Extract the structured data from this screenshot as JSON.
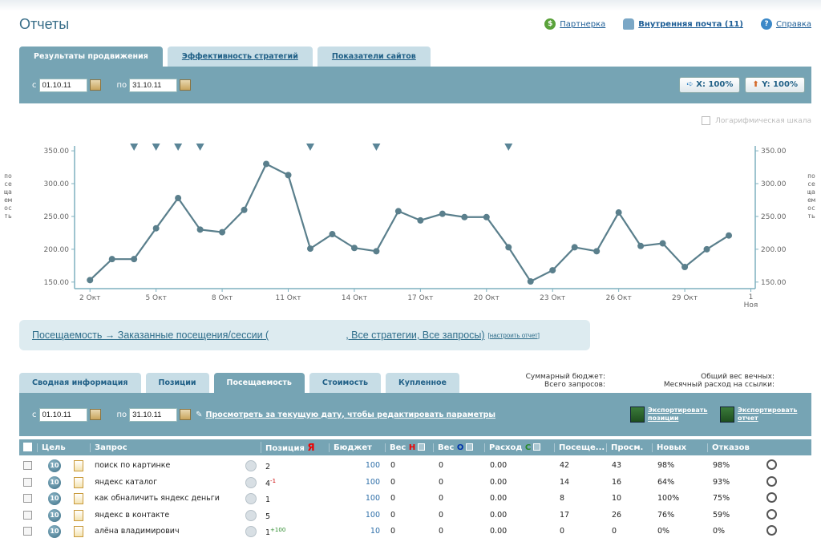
{
  "header": {
    "title": "Отчеты",
    "partner_link": "Партнерка",
    "mail_link": "Внутренняя почта (11)",
    "help_link": "Справка"
  },
  "top_tabs": [
    "Результаты продвижения",
    "Эффективность стратегий",
    "Показатели сайтов"
  ],
  "date_filter": {
    "from_label": "с",
    "from": "01.10.11",
    "to_label": "по",
    "to": "31.10.11"
  },
  "zoom": {
    "x": "X: 100%",
    "y": "Y: 100%"
  },
  "log_scale_label": "Логарифмическая шкала",
  "chart_data": {
    "type": "line",
    "ylabel": "посещаемость",
    "ylim": [
      140,
      355
    ],
    "y_ticks": [
      "350.00",
      "300.00",
      "250.00",
      "200.00",
      "150.00"
    ],
    "x_ticks": [
      "2 Окт",
      "5 Окт",
      "8 Окт",
      "11 Окт",
      "14 Окт",
      "17 Окт",
      "20 Окт",
      "23 Окт",
      "26 Окт",
      "29 Окт",
      "1 Ноя"
    ],
    "x": [
      2,
      3,
      4,
      5,
      6,
      7,
      8,
      9,
      10,
      11,
      12,
      13,
      14,
      15,
      16,
      17,
      18,
      19,
      20,
      21,
      22,
      23,
      24,
      25,
      26,
      27,
      28,
      29,
      30,
      31
    ],
    "values": [
      153,
      185,
      185,
      232,
      278,
      230,
      226,
      260,
      330,
      313,
      201,
      223,
      202,
      197,
      258,
      244,
      254,
      249,
      249,
      203,
      151,
      168,
      203,
      197,
      256,
      205,
      209,
      173,
      200,
      221
    ],
    "markers_x": [
      4,
      5,
      6,
      7,
      12,
      15,
      21
    ],
    "line_color": "#5a7f8c",
    "axis_color": "#7fb0bf"
  },
  "report": {
    "title": "Посещаемость → Заказанные посещения/сессии (",
    "title_rest": ", Все стратегии, Все запросы)",
    "configure_link": "[настроить отчет]"
  },
  "bottom_tabs": [
    "Сводная информация",
    "Позиции",
    "Посещаемость",
    "Стоимость",
    "Купленное"
  ],
  "summary": {
    "budget": "Суммарный бюджет:",
    "requests": "Всего запросов:",
    "total_weight": "Общий вес вечных:",
    "monthly_spend": "Месячный расход на ссылки:"
  },
  "date_filter2": {
    "from_label": "с",
    "from": "01.10.11",
    "to_label": "по",
    "to": "31.10.11"
  },
  "view_link": "Просмотреть за текущую дату, чтобы редактировать параметры",
  "export": {
    "positions": "Экспортировать позиции",
    "report": "Экспортировать отчет"
  },
  "columns": [
    "Цель",
    "Запрос",
    "Позиция",
    "Я",
    "Бюджет",
    "Вес",
    "H",
    "Вес",
    "O",
    "Расход",
    "C",
    "Посеще...",
    "Просм.",
    "Новых",
    "Отказов"
  ],
  "rows": [
    {
      "goal": "10",
      "query": "поиск по картинке",
      "pos": "2",
      "pos_sup": "",
      "budget": "100",
      "b2": "0",
      "weight_o": "0",
      "spend": "0.00",
      "visits": "42",
      "views": "43",
      "new": "98%",
      "bounce": "98%"
    },
    {
      "goal": "10",
      "query": "яндекс каталог",
      "pos": "4",
      "pos_sup": "-1",
      "budget": "100",
      "b2": "0",
      "weight_o": "0",
      "spend": "0.00",
      "visits": "14",
      "views": "16",
      "new": "64%",
      "bounce": "93%"
    },
    {
      "goal": "10",
      "query": "как обналичить яндекс деньги",
      "pos": "1",
      "pos_sup": "",
      "budget": "100",
      "b2": "0",
      "weight_o": "0",
      "spend": "0.00",
      "visits": "8",
      "views": "10",
      "new": "100%",
      "bounce": "75%"
    },
    {
      "goal": "10",
      "query": "яндекс в контакте",
      "pos": "5",
      "pos_sup": "",
      "budget": "100",
      "b2": "0",
      "weight_o": "0",
      "spend": "0.00",
      "visits": "17",
      "views": "26",
      "new": "76%",
      "bounce": "59%"
    },
    {
      "goal": "10",
      "query": "алёна владимирович",
      "pos": "1",
      "pos_sup": "+100",
      "budget": "10",
      "b2": "0",
      "weight_o": "0",
      "spend": "0.00",
      "visits": "0",
      "views": "0",
      "new": "0%",
      "bounce": "0%"
    }
  ]
}
